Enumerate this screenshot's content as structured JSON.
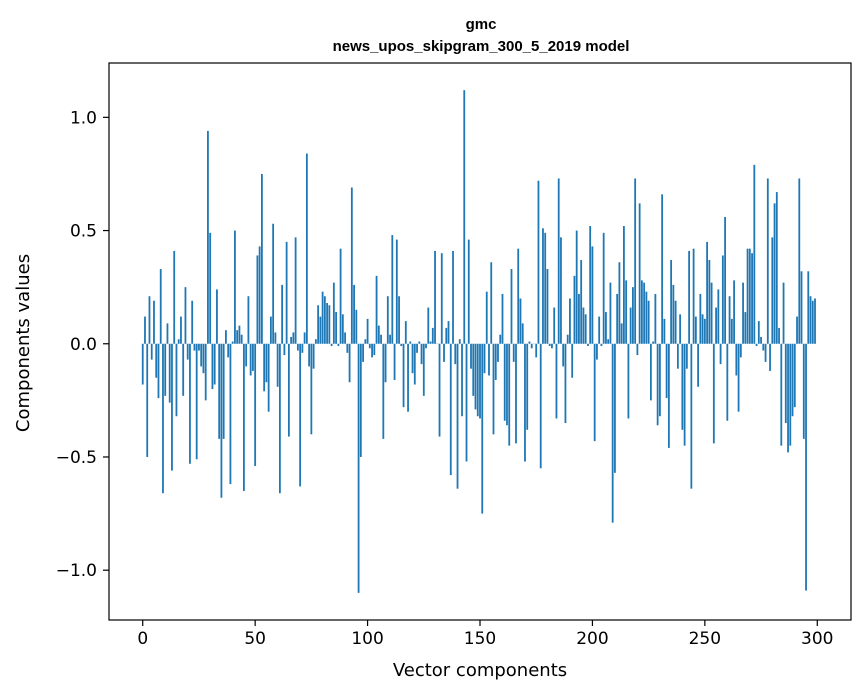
{
  "chart_data": {
    "type": "bar",
    "title_line1": "gmc",
    "title_line2": "news_upos_skipgram_300_5_2019 model",
    "xlabel": "Vector components",
    "ylabel": "Components values",
    "xlim": [
      -15,
      315
    ],
    "ylim": [
      -1.22,
      1.24
    ],
    "x_ticks": [
      0,
      50,
      100,
      150,
      200,
      250,
      300
    ],
    "y_ticks": [
      -1.0,
      -0.5,
      0.0,
      0.5,
      1.0
    ],
    "y_tick_labels": [
      "−1.0",
      "−0.5",
      "0.0",
      "0.5",
      "1.0"
    ],
    "bar_color": "#1f77b4",
    "values": [
      -0.18,
      0.12,
      -0.5,
      0.21,
      -0.07,
      0.19,
      -0.15,
      -0.24,
      0.33,
      -0.66,
      -0.23,
      0.09,
      -0.26,
      -0.56,
      0.41,
      -0.32,
      0.02,
      0.12,
      -0.23,
      0.25,
      -0.07,
      -0.53,
      0.19,
      -0.03,
      -0.51,
      -0.03,
      -0.1,
      -0.13,
      -0.25,
      0.94,
      0.49,
      -0.2,
      -0.18,
      0.24,
      -0.42,
      -0.68,
      -0.42,
      0.06,
      -0.06,
      -0.62,
      0.01,
      0.5,
      0.06,
      0.08,
      0.04,
      -0.65,
      -0.1,
      0.21,
      -0.14,
      -0.12,
      -0.54,
      0.39,
      0.43,
      0.75,
      -0.21,
      -0.17,
      -0.3,
      0.12,
      0.53,
      0.05,
      -0.19,
      -0.66,
      0.26,
      -0.05,
      0.45,
      -0.41,
      0.03,
      0.05,
      0.47,
      -0.03,
      -0.63,
      -0.04,
      0.05,
      0.84,
      -0.1,
      -0.4,
      -0.11,
      0.02,
      0.17,
      0.12,
      0.23,
      0.21,
      0.18,
      0.17,
      -0.01,
      0.27,
      0.14,
      -0.01,
      0.42,
      0.13,
      0.05,
      -0.04,
      -0.17,
      0.69,
      0.26,
      0.15,
      -1.1,
      -0.5,
      -0.08,
      0.02,
      0.11,
      -0.02,
      -0.06,
      -0.05,
      0.3,
      0.08,
      0.04,
      -0.42,
      -0.17,
      0.21,
      0.04,
      0.48,
      -0.16,
      0.46,
      0.21,
      -0.01,
      -0.28,
      0.1,
      -0.3,
      0.01,
      -0.13,
      -0.18,
      -0.04,
      0.01,
      -0.09,
      -0.23,
      -0.02,
      0.16,
      0.01,
      0.07,
      0.41,
      0.0,
      -0.41,
      0.4,
      -0.08,
      0.07,
      0.1,
      -0.58,
      0.41,
      -0.09,
      -0.64,
      0.02,
      -0.32,
      1.12,
      -0.52,
      0.46,
      -0.11,
      -0.23,
      -0.29,
      -0.32,
      -0.33,
      -0.75,
      -0.13,
      0.23,
      -0.14,
      0.36,
      -0.4,
      -0.16,
      -0.08,
      0.04,
      0.22,
      -0.34,
      -0.36,
      -0.45,
      0.33,
      -0.08,
      -0.44,
      0.42,
      0.2,
      0.09,
      -0.52,
      -0.38,
      0.01,
      -0.02,
      0.0,
      -0.06,
      0.72,
      -0.55,
      0.51,
      0.49,
      0.33,
      -0.01,
      -0.02,
      0.16,
      -0.33,
      0.73,
      0.47,
      -0.1,
      -0.35,
      0.04,
      0.2,
      -0.15,
      0.3,
      0.5,
      0.22,
      0.37,
      0.16,
      0.13,
      -0.01,
      0.52,
      0.43,
      -0.43,
      -0.07,
      0.12,
      -0.01,
      0.49,
      0.14,
      0.02,
      0.27,
      -0.79,
      -0.57,
      0.22,
      0.36,
      0.09,
      0.52,
      0.28,
      -0.33,
      0.16,
      0.25,
      0.73,
      -0.05,
      0.62,
      0.28,
      0.27,
      0.23,
      0.19,
      -0.25,
      0.01,
      0.22,
      -0.36,
      -0.32,
      0.66,
      0.11,
      -0.24,
      -0.46,
      0.37,
      0.26,
      0.19,
      -0.11,
      0.13,
      -0.38,
      -0.45,
      -0.11,
      0.41,
      -0.64,
      0.42,
      0.12,
      -0.19,
      0.22,
      0.13,
      0.11,
      0.45,
      0.37,
      0.27,
      -0.44,
      0.16,
      0.24,
      -0.09,
      0.39,
      0.56,
      -0.34,
      0.21,
      0.11,
      0.28,
      -0.14,
      -0.3,
      -0.06,
      0.27,
      0.14,
      0.42,
      0.42,
      0.4,
      0.79,
      -0.01,
      0.1,
      0.03,
      -0.03,
      -0.08,
      0.73,
      -0.12,
      0.47,
      0.62,
      0.67,
      0.07,
      -0.45,
      0.27,
      -0.35,
      -0.48,
      -0.45,
      -0.32,
      -0.28,
      0.12,
      0.73,
      0.32,
      -0.42,
      -1.09,
      0.32,
      0.21,
      0.19,
      0.2
    ]
  }
}
